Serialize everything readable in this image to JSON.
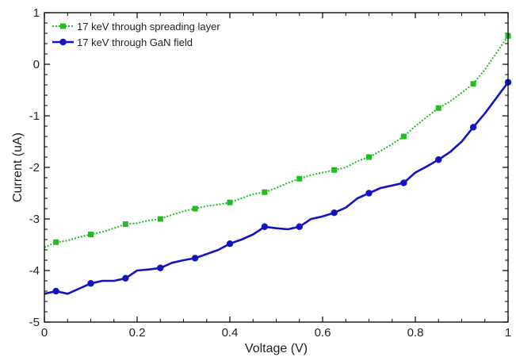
{
  "chart_data": {
    "type": "line",
    "title": "",
    "xlabel": "Voltage (V)",
    "ylabel": "Current (uA)",
    "xlim": [
      0,
      1
    ],
    "ylim": [
      -5,
      1
    ],
    "x_ticks": [
      0,
      0.2,
      0.4,
      0.6,
      0.8,
      1
    ],
    "x_tick_labels": [
      "0",
      "0.2",
      "0.4",
      "0.6",
      "0.8",
      "1"
    ],
    "y_ticks": [
      -5,
      -4,
      -3,
      -2,
      -1,
      0,
      1
    ],
    "y_tick_labels": [
      "-5",
      "-4",
      "-3",
      "-2",
      "-1",
      "0",
      "1"
    ],
    "grid": false,
    "legend_position": "top-left",
    "series": [
      {
        "name": "17 keV through spreading layer",
        "color": "#22bb22",
        "line_style": "dotted",
        "marker": "square",
        "x": [
          0,
          0.025,
          0.05,
          0.075,
          0.1,
          0.125,
          0.15,
          0.175,
          0.2,
          0.225,
          0.25,
          0.275,
          0.3,
          0.325,
          0.35,
          0.375,
          0.4,
          0.425,
          0.45,
          0.475,
          0.5,
          0.525,
          0.55,
          0.575,
          0.6,
          0.625,
          0.65,
          0.675,
          0.7,
          0.725,
          0.75,
          0.775,
          0.8,
          0.825,
          0.85,
          0.875,
          0.9,
          0.925,
          0.95,
          0.975,
          1.0
        ],
        "y": [
          -3.55,
          -3.45,
          -3.42,
          -3.35,
          -3.3,
          -3.25,
          -3.18,
          -3.1,
          -3.08,
          -3.03,
          -3.0,
          -2.92,
          -2.85,
          -2.8,
          -2.75,
          -2.72,
          -2.68,
          -2.6,
          -2.52,
          -2.48,
          -2.4,
          -2.3,
          -2.22,
          -2.15,
          -2.1,
          -2.05,
          -2.0,
          -1.88,
          -1.8,
          -1.68,
          -1.55,
          -1.4,
          -1.2,
          -1.02,
          -0.85,
          -0.72,
          -0.55,
          -0.38,
          -0.1,
          0.22,
          0.55
        ],
        "marker_x": [
          0.025,
          0.1,
          0.175,
          0.25,
          0.325,
          0.4,
          0.475,
          0.55,
          0.625,
          0.7,
          0.775,
          0.85,
          0.925,
          1.0
        ],
        "marker_y": [
          -3.45,
          -3.3,
          -3.1,
          -3.0,
          -2.8,
          -2.68,
          -2.48,
          -2.22,
          -2.05,
          -1.8,
          -1.4,
          -0.85,
          -0.38,
          0.55
        ]
      },
      {
        "name": "17 keV through GaN field",
        "color": "#1515c0",
        "line_style": "solid",
        "marker": "circle",
        "x": [
          0,
          0.025,
          0.05,
          0.075,
          0.1,
          0.125,
          0.15,
          0.175,
          0.2,
          0.225,
          0.25,
          0.275,
          0.3,
          0.325,
          0.35,
          0.375,
          0.4,
          0.425,
          0.45,
          0.475,
          0.5,
          0.525,
          0.55,
          0.575,
          0.6,
          0.625,
          0.65,
          0.675,
          0.7,
          0.725,
          0.75,
          0.775,
          0.8,
          0.825,
          0.85,
          0.875,
          0.9,
          0.925,
          0.95,
          0.975,
          1.0
        ],
        "y": [
          -4.45,
          -4.4,
          -4.45,
          -4.35,
          -4.25,
          -4.2,
          -4.2,
          -4.15,
          -4.0,
          -3.98,
          -3.95,
          -3.85,
          -3.8,
          -3.76,
          -3.68,
          -3.6,
          -3.48,
          -3.4,
          -3.3,
          -3.15,
          -3.18,
          -3.2,
          -3.15,
          -3.0,
          -2.95,
          -2.88,
          -2.78,
          -2.6,
          -2.5,
          -2.4,
          -2.35,
          -2.3,
          -2.1,
          -1.98,
          -1.85,
          -1.7,
          -1.5,
          -1.22,
          -0.95,
          -0.65,
          -0.35
        ],
        "marker_x": [
          0.025,
          0.1,
          0.175,
          0.25,
          0.325,
          0.4,
          0.475,
          0.55,
          0.625,
          0.7,
          0.775,
          0.85,
          0.925,
          1.0
        ],
        "marker_y": [
          -4.4,
          -4.25,
          -4.15,
          -3.95,
          -3.76,
          -3.48,
          -3.15,
          -3.15,
          -2.88,
          -2.5,
          -2.3,
          -1.85,
          -1.22,
          -0.35
        ]
      }
    ]
  }
}
